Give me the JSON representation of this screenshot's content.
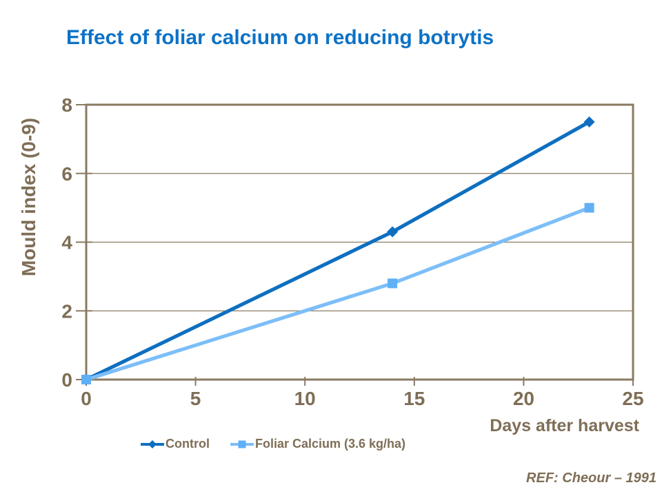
{
  "slide": {
    "title": "Effect of foliar calcium on reducing botrytis",
    "reference": "REF: Cheour – 1991"
  },
  "colors": {
    "background": "#ffffff",
    "title_blue": "#0d72c6",
    "axis_text_brown": "#7e6e56",
    "axis_line_brown": "#8a7a62",
    "control_blue": "#0e6fc0",
    "foliar_line_blue": "#7cbef8",
    "foliar_marker_blue": "#5fb0f5"
  },
  "chart_data": {
    "type": "line",
    "title": "Effect of foliar calcium on reducing botrytis",
    "xlabel": "Days after harvest",
    "ylabel": "Mould index (0-9)",
    "xlim": [
      0,
      25
    ],
    "ylim": [
      0,
      8
    ],
    "x_ticks": [
      0,
      5,
      10,
      15,
      20,
      25
    ],
    "y_ticks": [
      0,
      2,
      4,
      6,
      8
    ],
    "grid": "horizontal",
    "legend_position": "bottom-left",
    "series": [
      {
        "name": "Control",
        "marker": "diamond",
        "color": "#0e6fc0",
        "marker_color": "#0e6fc0",
        "x": [
          0,
          14,
          23
        ],
        "values": [
          0,
          4.3,
          7.5
        ]
      },
      {
        "name": "Foliar Calcium (3.6 kg/ha)",
        "marker": "square",
        "color": "#7cbef8",
        "marker_color": "#5fb0f5",
        "x": [
          0,
          14,
          23
        ],
        "values": [
          0,
          2.8,
          5.0
        ]
      }
    ]
  }
}
